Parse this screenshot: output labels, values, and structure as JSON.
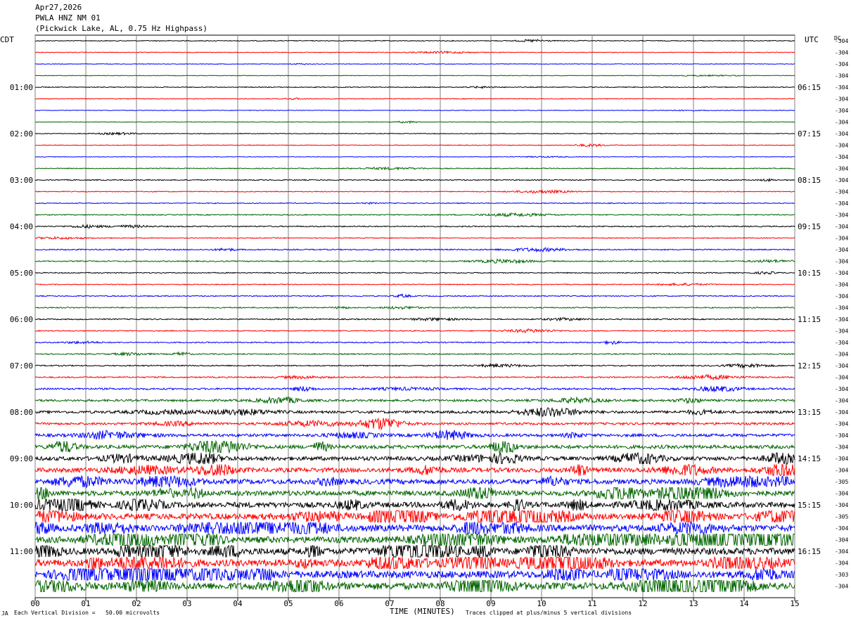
{
  "header": {
    "date": "Apr27,2026",
    "station": "PWLA HNZ NM 01",
    "location": "(Pickwick Lake, AL, 0.75 Hz Highpass)"
  },
  "left_zone": "CDT",
  "right_zone": "UTC",
  "dc_label": "DC",
  "footer": {
    "scale_note": "Each Vertical Division =   50.00 microvolts",
    "xlabel": "TIME (MINUTES)",
    "clip_note": "Traces clipped at plus/minus 5 vertical divisions",
    "mark": "JA"
  },
  "colors": {
    "black": "#000000",
    "red": "#ff0000",
    "blue": "#0000ff",
    "green": "#006400",
    "grid": "#808080"
  },
  "chart_data": {
    "type": "line",
    "title": "PWLA HNZ NM 01",
    "xlabel": "TIME (MINUTES)",
    "xlim": [
      0,
      15
    ],
    "x_ticks": [
      "00",
      "01",
      "02",
      "03",
      "04",
      "05",
      "06",
      "07",
      "08",
      "09",
      "10",
      "11",
      "12",
      "13",
      "14",
      "15"
    ],
    "line_colors": [
      "black",
      "red",
      "blue",
      "green"
    ],
    "left_time_labels": [
      "01:00",
      "02:00",
      "03:00",
      "04:00",
      "05:00",
      "06:00",
      "07:00",
      "08:00",
      "09:00",
      "10:00",
      "11:00"
    ],
    "right_time_labels": [
      "06:15",
      "07:15",
      "08:15",
      "09:15",
      "10:15",
      "11:15",
      "12:15",
      "13:15",
      "14:15",
      "15:15",
      "16:15"
    ],
    "dc_offsets": [
      "-304",
      "-304",
      "-304",
      "-304",
      "-304",
      "-304",
      "-304",
      "-304",
      "-304",
      "-304",
      "-304",
      "-304",
      "-304",
      "-304",
      "-304",
      "-304",
      "-304",
      "-304",
      "-304",
      "-304",
      "-304",
      "-304",
      "-304",
      "-304",
      "-304",
      "-304",
      "-304",
      "-304",
      "-304",
      "-304",
      "-304",
      "-304",
      "-304",
      "-304",
      "-304",
      "-304",
      "-304",
      "-304",
      "-305",
      "-304",
      "-304",
      "-305",
      "-304",
      "-304",
      "-304",
      "-304",
      "-303",
      "-304"
    ],
    "noise_levels": [
      0.6,
      0.5,
      0.4,
      0.4,
      0.6,
      0.5,
      0.4,
      0.4,
      0.5,
      0.5,
      0.4,
      0.6,
      0.7,
      0.6,
      0.6,
      0.7,
      0.8,
      0.6,
      0.8,
      0.8,
      0.7,
      0.6,
      0.7,
      0.8,
      0.8,
      0.7,
      0.8,
      0.8,
      0.8,
      0.9,
      1.2,
      1.5,
      1.8,
      1.6,
      2.0,
      2.5,
      2.8,
      3.2,
      3.5,
      3.5,
      3.8,
      4.2,
      4.5,
      4.5,
      4.6,
      4.8,
      5.0,
      5.0
    ]
  }
}
